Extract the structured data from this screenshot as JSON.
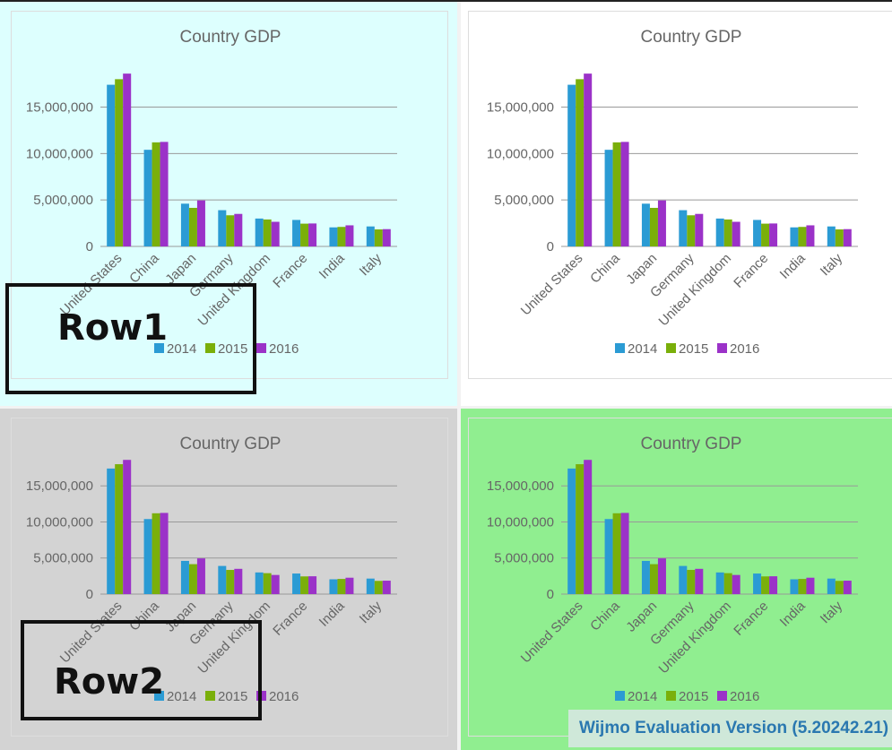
{
  "panels": [
    {
      "id": "p1",
      "background": "#ddfffe"
    },
    {
      "id": "p2",
      "background": "#ffffff"
    },
    {
      "id": "p3",
      "background": "#d3d3d3"
    },
    {
      "id": "p4",
      "background": "#90ee90"
    }
  ],
  "row_labels": [
    "Row1",
    "Row2"
  ],
  "evaluation_notice": "Wijmo Evaluation Version (5.20242.21)",
  "chart_data": {
    "type": "bar",
    "title": "Country GDP",
    "xlabel": "",
    "ylabel": "",
    "categories": [
      "United States",
      "China",
      "Japan",
      "Germany",
      "United Kingdom",
      "France",
      "India",
      "Italy"
    ],
    "series": [
      {
        "name": "2014",
        "color": "#2b9bd4",
        "values": [
          17400000,
          10400000,
          4600000,
          3900000,
          3000000,
          2850000,
          2050000,
          2150000
        ]
      },
      {
        "name": "2015",
        "color": "#7aaf0a",
        "values": [
          18000000,
          11200000,
          4150000,
          3350000,
          2900000,
          2450000,
          2100000,
          1830000
        ]
      },
      {
        "name": "2016",
        "color": "#9b32c8",
        "values": [
          18600000,
          11250000,
          4950000,
          3500000,
          2650000,
          2470000,
          2270000,
          1860000
        ]
      }
    ],
    "yticks": [
      0,
      5000000,
      10000000,
      15000000
    ],
    "ytick_labels": [
      "0",
      "5,000,000",
      "10,000,000",
      "15,000,000"
    ],
    "ylim": [
      0,
      19000000
    ],
    "grid": true,
    "legend_position": "bottom"
  }
}
